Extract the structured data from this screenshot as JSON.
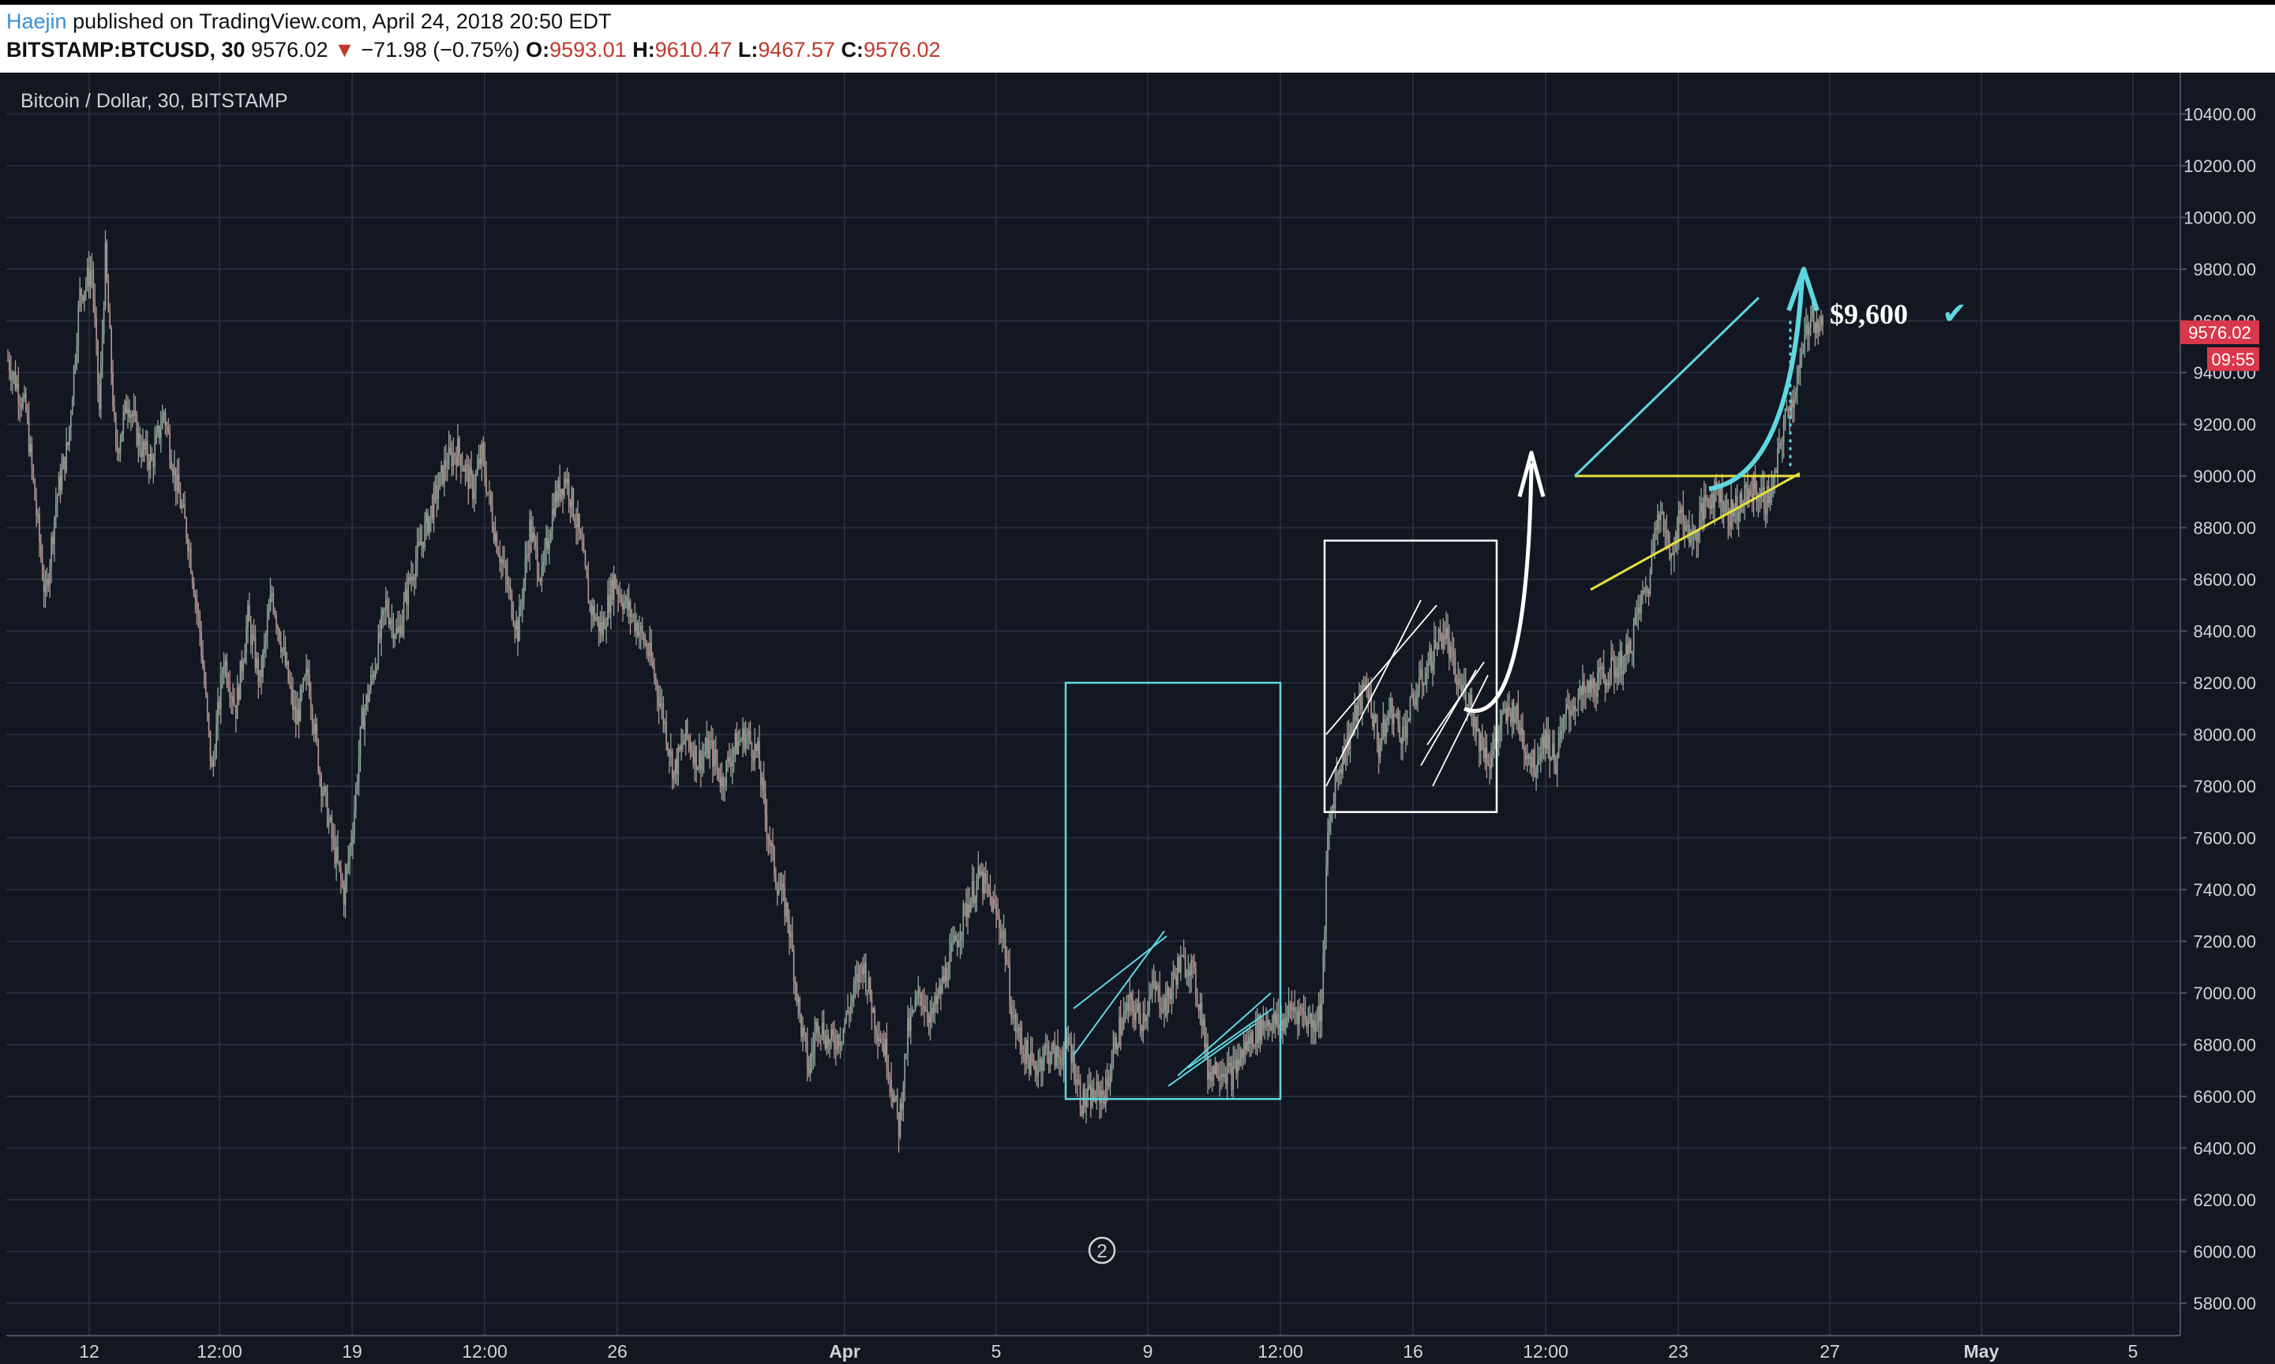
{
  "header": {
    "author": "Haejin",
    "published_text": "published on TradingView.com, April 24, 2018 20:50 EDT",
    "symbol": "BITSTAMP:BTCUSD, 30",
    "last": "9576.02",
    "change_arrow": "▼",
    "change": "−71.98 (−0.75%)",
    "o_label": "O:",
    "o_value": "9593.01",
    "h_label": "H:",
    "h_value": "9610.47",
    "l_label": "L:",
    "l_value": "9467.57",
    "c_label": "C:",
    "c_value": "9576.02"
  },
  "chart_data": {
    "type": "candlestick",
    "title": "Bitcoin / Dollar, 30, BITSTAMP",
    "ylim": [
      5700,
      10550
    ],
    "y_ticks": [
      5800,
      6000,
      6200,
      6400,
      6600,
      6800,
      7000,
      7200,
      7400,
      7600,
      7800,
      8000,
      8200,
      8400,
      8600,
      8800,
      9000,
      9200,
      9400,
      9600,
      9800,
      10000,
      10200,
      10400
    ],
    "x_ticks": [
      "12",
      "12:00",
      "19",
      "12:00",
      "26",
      "Apr",
      "5",
      "9",
      "12:00",
      "16",
      "12:00",
      "23",
      "27",
      "May",
      "5"
    ],
    "price_path": [
      [
        0,
        9450
      ],
      [
        12,
        9250
      ],
      [
        25,
        8520
      ],
      [
        32,
        8900
      ],
      [
        40,
        9120
      ],
      [
        48,
        9700
      ],
      [
        56,
        9800
      ],
      [
        61,
        9250
      ],
      [
        65,
        9850
      ],
      [
        72,
        9080
      ],
      [
        80,
        9300
      ],
      [
        88,
        9120
      ],
      [
        96,
        9050
      ],
      [
        104,
        9250
      ],
      [
        112,
        8980
      ],
      [
        120,
        8760
      ],
      [
        128,
        8400
      ],
      [
        136,
        7850
      ],
      [
        144,
        8300
      ],
      [
        152,
        8100
      ],
      [
        160,
        8450
      ],
      [
        168,
        8200
      ],
      [
        176,
        8550
      ],
      [
        184,
        8300
      ],
      [
        192,
        8050
      ],
      [
        200,
        8240
      ],
      [
        208,
        7850
      ],
      [
        216,
        7600
      ],
      [
        224,
        7380
      ],
      [
        230,
        7650
      ],
      [
        236,
        8050
      ],
      [
        244,
        8250
      ],
      [
        252,
        8500
      ],
      [
        260,
        8380
      ],
      [
        268,
        8600
      ],
      [
        276,
        8750
      ],
      [
        284,
        8900
      ],
      [
        292,
        9050
      ],
      [
        300,
        9100
      ],
      [
        310,
        8950
      ],
      [
        316,
        9080
      ],
      [
        324,
        8800
      ],
      [
        332,
        8600
      ],
      [
        340,
        8400
      ],
      [
        348,
        8800
      ],
      [
        356,
        8600
      ],
      [
        364,
        8900
      ],
      [
        372,
        9000
      ],
      [
        380,
        8800
      ],
      [
        388,
        8500
      ],
      [
        396,
        8400
      ],
      [
        404,
        8600
      ],
      [
        412,
        8500
      ],
      [
        420,
        8420
      ],
      [
        428,
        8300
      ],
      [
        436,
        8100
      ],
      [
        444,
        7850
      ],
      [
        452,
        8000
      ],
      [
        460,
        7900
      ],
      [
        468,
        7950
      ],
      [
        476,
        7820
      ],
      [
        484,
        7950
      ],
      [
        492,
        8000
      ],
      [
        500,
        7920
      ],
      [
        506,
        7650
      ],
      [
        512,
        7450
      ],
      [
        520,
        7300
      ],
      [
        528,
        6900
      ],
      [
        534,
        6700
      ],
      [
        540,
        6900
      ],
      [
        548,
        6800
      ],
      [
        556,
        6850
      ],
      [
        564,
        7000
      ],
      [
        570,
        7120
      ],
      [
        578,
        6900
      ],
      [
        586,
        6760
      ],
      [
        594,
        6480
      ],
      [
        600,
        6850
      ],
      [
        608,
        7000
      ],
      [
        616,
        6900
      ],
      [
        624,
        7050
      ],
      [
        632,
        7200
      ],
      [
        640,
        7350
      ],
      [
        648,
        7450
      ],
      [
        656,
        7350
      ],
      [
        664,
        7220
      ],
      [
        670,
        6900
      ],
      [
        676,
        6800
      ],
      [
        684,
        6700
      ],
      [
        692,
        6780
      ],
      [
        700,
        6750
      ],
      [
        708,
        6800
      ],
      [
        716,
        6580
      ],
      [
        724,
        6600
      ],
      [
        732,
        6620
      ],
      [
        740,
        6850
      ],
      [
        748,
        6950
      ],
      [
        756,
        6900
      ],
      [
        764,
        7020
      ],
      [
        772,
        6950
      ],
      [
        780,
        7100
      ],
      [
        788,
        7120
      ],
      [
        796,
        6920
      ],
      [
        800,
        6700
      ],
      [
        808,
        6720
      ],
      [
        816,
        6680
      ],
      [
        824,
        6780
      ],
      [
        832,
        6850
      ],
      [
        840,
        6900
      ],
      [
        848,
        6870
      ],
      [
        856,
        6940
      ],
      [
        862,
        6930
      ],
      [
        870,
        6880
      ],
      [
        876,
        6950
      ],
      [
        880,
        7600
      ],
      [
        886,
        7850
      ],
      [
        892,
        7950
      ],
      [
        900,
        8100
      ],
      [
        906,
        8200
      ],
      [
        914,
        7950
      ],
      [
        922,
        8100
      ],
      [
        930,
        8000
      ],
      [
        938,
        8150
      ],
      [
        946,
        8250
      ],
      [
        952,
        8350
      ],
      [
        958,
        8400
      ],
      [
        966,
        8200
      ],
      [
        974,
        8150
      ],
      [
        980,
        8000
      ],
      [
        988,
        7900
      ],
      [
        996,
        8050
      ],
      [
        1004,
        8100
      ],
      [
        1012,
        7950
      ],
      [
        1018,
        7880
      ],
      [
        1024,
        8000
      ],
      [
        1032,
        7900
      ],
      [
        1040,
        8100
      ],
      [
        1050,
        8150
      ],
      [
        1060,
        8200
      ],
      [
        1070,
        8250
      ],
      [
        1080,
        8300
      ],
      [
        1088,
        8500
      ],
      [
        1094,
        8580
      ],
      [
        1100,
        8900
      ],
      [
        1108,
        8700
      ],
      [
        1116,
        8850
      ],
      [
        1124,
        8750
      ],
      [
        1132,
        8900
      ],
      [
        1140,
        8950
      ],
      [
        1148,
        8850
      ],
      [
        1156,
        8900
      ],
      [
        1164,
        8950
      ],
      [
        1172,
        8900
      ],
      [
        1178,
        8980
      ],
      [
        1184,
        9200
      ],
      [
        1190,
        9300
      ],
      [
        1196,
        9450
      ],
      [
        1202,
        9650
      ],
      [
        1207,
        9580
      ],
      [
        1210,
        9576
      ]
    ],
    "drawings": {
      "price_label": "$9,600",
      "check_mark": "✔",
      "last_price_tag": "9576.02",
      "countdown_tag": "09:55",
      "circle_marker": "2"
    },
    "grid": true,
    "colors": {
      "background": "#131722",
      "grid": "#262b38",
      "candles": "#a89a96",
      "cyan": "#5fd7e0",
      "yellow": "#e8e03a",
      "white": "#ffffff",
      "price_tag": "#d9374b"
    }
  }
}
